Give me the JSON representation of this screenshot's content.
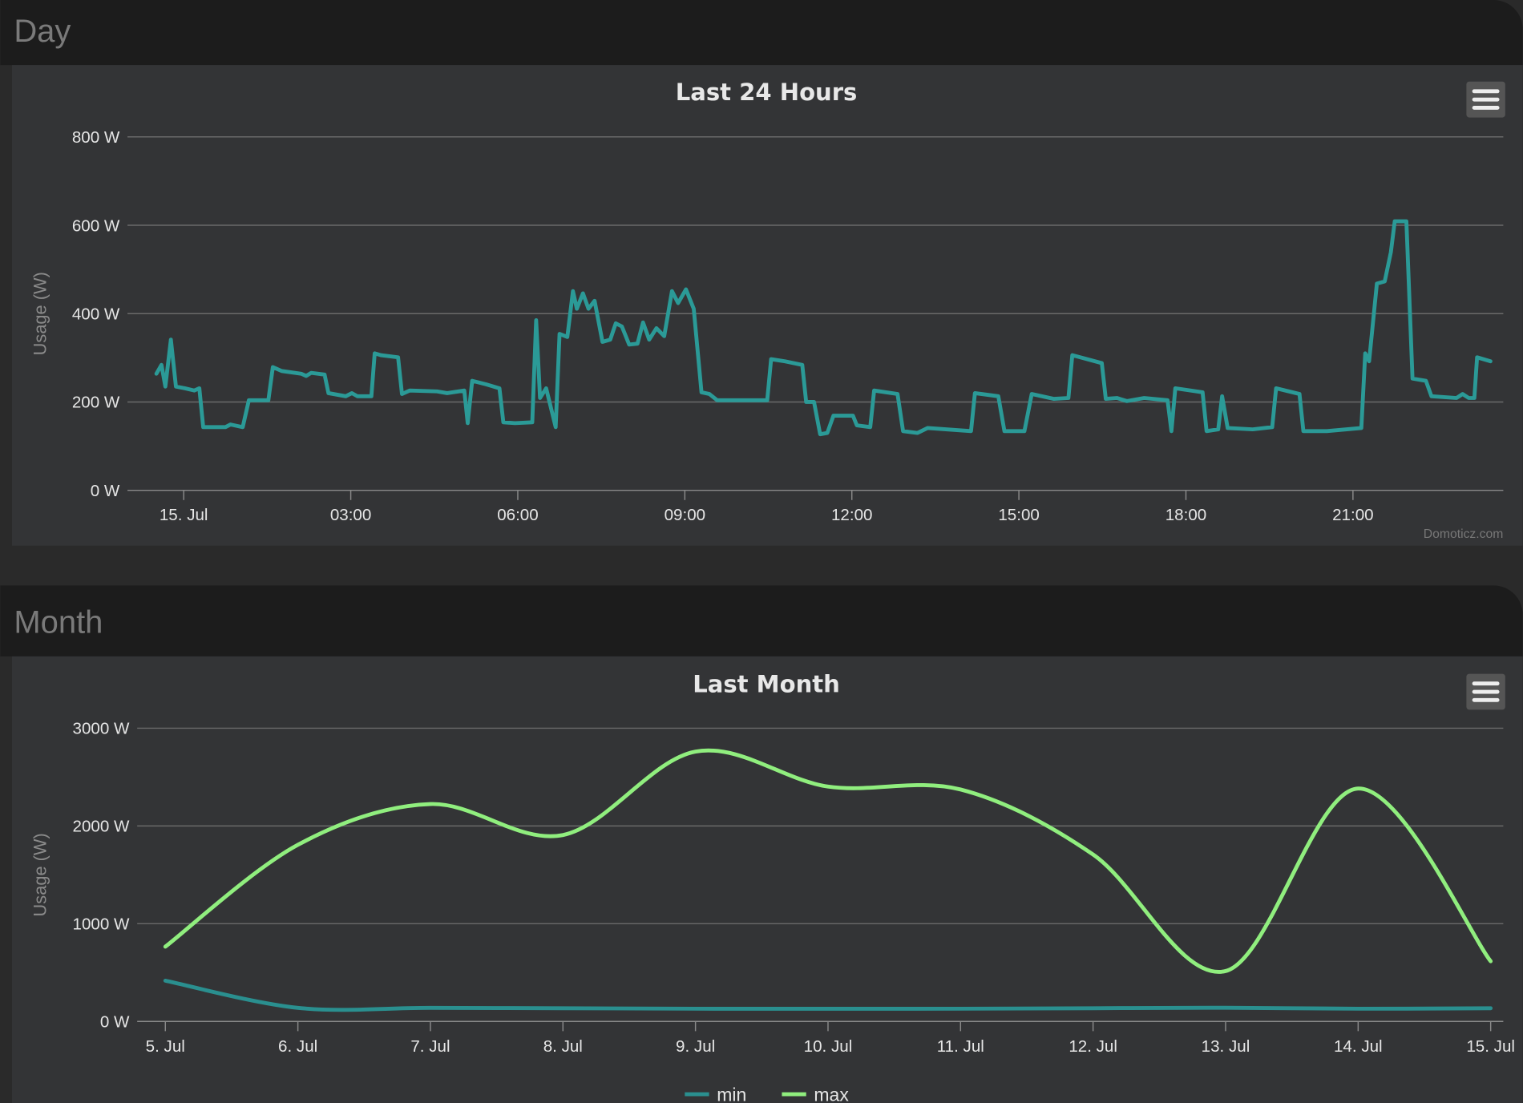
{
  "panels": [
    "Day",
    "Month"
  ],
  "credit": "Domoticz.com",
  "chart_data": [
    {
      "type": "line",
      "title": "Last 24 Hours",
      "y_label": "Usage (W)",
      "color": "#2b9a97",
      "grid": true,
      "xlim": [
        -1.01,
        23.7
      ],
      "xticks": [
        {
          "value": 0,
          "label": "15. Jul"
        },
        {
          "value": 3,
          "label": "03:00"
        },
        {
          "value": 6,
          "label": "06:00"
        },
        {
          "value": 9,
          "label": "09:00"
        },
        {
          "value": 12,
          "label": "12:00"
        },
        {
          "value": 15,
          "label": "15:00"
        },
        {
          "value": 18,
          "label": "18:00"
        },
        {
          "value": 21,
          "label": "21:00"
        }
      ],
      "ylim": [
        0,
        800
      ],
      "yticks": [
        {
          "value": 0,
          "label": "0 W"
        },
        {
          "value": 200,
          "label": "200 W"
        },
        {
          "value": 400,
          "label": "400 W"
        },
        {
          "value": 600,
          "label": "600 W"
        },
        {
          "value": 800,
          "label": "800 W"
        }
      ],
      "x": [
        -0.49,
        -0.4,
        -0.33,
        -0.23,
        -0.14,
        0.02,
        0.19,
        0.28,
        0.35,
        0.75,
        0.84,
        1.06,
        1.17,
        1.52,
        1.6,
        1.76,
        2.11,
        2.2,
        2.29,
        2.53,
        2.6,
        2.91,
        3.02,
        3.12,
        3.37,
        3.43,
        3.54,
        3.85,
        3.92,
        4.06,
        4.55,
        4.73,
        5.04,
        5.1,
        5.18,
        5.43,
        5.67,
        5.74,
        5.95,
        6.26,
        6.33,
        6.4,
        6.51,
        6.68,
        6.75,
        6.89,
        6.99,
        7.06,
        7.17,
        7.27,
        7.38,
        7.52,
        7.66,
        7.76,
        7.87,
        8.0,
        8.15,
        8.25,
        8.36,
        8.49,
        8.63,
        8.77,
        8.88,
        9.02,
        9.16,
        9.3,
        9.44,
        9.58,
        10.14,
        10.48,
        10.55,
        10.8,
        11.11,
        11.18,
        11.32,
        11.43,
        11.56,
        11.67,
        12.02,
        12.09,
        12.33,
        12.4,
        12.82,
        12.92,
        13.18,
        13.36,
        14.14,
        14.21,
        14.63,
        14.74,
        15.1,
        15.23,
        15.63,
        15.89,
        15.96,
        16.49,
        16.56,
        16.76,
        16.94,
        17.25,
        17.67,
        17.74,
        17.81,
        18.3,
        18.37,
        18.58,
        18.65,
        18.75,
        19.2,
        19.55,
        19.62,
        20.04,
        20.11,
        20.53,
        21.15,
        21.22,
        21.29,
        21.43,
        21.57,
        21.68,
        21.75,
        21.96,
        22.07,
        22.31,
        22.41,
        22.86,
        22.97,
        23.08,
        23.18,
        23.23,
        23.47
      ],
      "values": [
        264,
        284,
        235,
        341,
        235,
        231,
        226,
        231,
        143,
        143,
        149,
        143,
        204,
        204,
        279,
        270,
        264,
        259,
        266,
        262,
        220,
        213,
        220,
        213,
        213,
        310,
        306,
        301,
        218,
        226,
        224,
        220,
        226,
        152,
        248,
        240,
        231,
        154,
        152,
        154,
        385,
        209,
        231,
        143,
        354,
        347,
        451,
        411,
        446,
        411,
        429,
        336,
        341,
        378,
        371,
        330,
        332,
        380,
        341,
        367,
        349,
        451,
        424,
        455,
        411,
        222,
        218,
        204,
        204,
        204,
        297,
        292,
        284,
        200,
        200,
        127,
        130,
        169,
        169,
        147,
        143,
        226,
        218,
        134,
        130,
        141,
        134,
        220,
        213,
        134,
        134,
        218,
        207,
        209,
        306,
        288,
        207,
        209,
        202,
        209,
        204,
        134,
        231,
        222,
        134,
        138,
        213,
        141,
        138,
        143,
        231,
        218,
        134,
        134,
        141,
        310,
        292,
        468,
        473,
        539,
        609,
        609,
        253,
        248,
        213,
        209,
        218,
        209,
        209,
        301,
        292
      ]
    },
    {
      "type": "spline",
      "title": "Last Month",
      "y_label": "Usage (W)",
      "grid": true,
      "categories": [
        "5. Jul",
        "6. Jul",
        "7. Jul",
        "8. Jul",
        "9. Jul",
        "10. Jul",
        "11. Jul",
        "12. Jul",
        "13. Jul",
        "14. Jul",
        "15. Jul"
      ],
      "ylim": [
        0,
        3000
      ],
      "yticks": [
        {
          "value": 0,
          "label": "0 W"
        },
        {
          "value": 1000,
          "label": "1000 W"
        },
        {
          "value": 2000,
          "label": "2000 W"
        },
        {
          "value": 3000,
          "label": "3000 W"
        }
      ],
      "series": [
        {
          "name": "min",
          "color": "#2a8f8f",
          "values": [
            417,
            139,
            139,
            135,
            130,
            130,
            130,
            135,
            140,
            130,
            135
          ]
        },
        {
          "name": "max",
          "color": "#90ee7e",
          "values": [
            765,
            1807,
            2224,
            1907,
            2761,
            2403,
            2373,
            1708,
            516,
            2383,
            616
          ]
        }
      ]
    }
  ]
}
